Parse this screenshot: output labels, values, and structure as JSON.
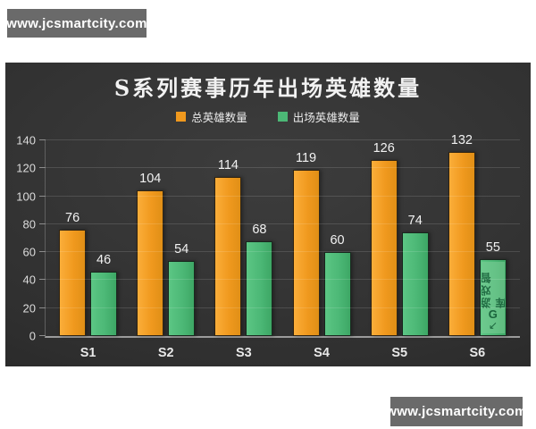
{
  "watermarks": {
    "top_left": "www.jcsmartcity.com",
    "bottom_right": "www.jcsmartcity.com",
    "on_chart": {
      "text": "游戏智库",
      "logo": "G",
      "arrow": "↙",
      "category": "S6",
      "series_index": 1
    }
  },
  "chart_data": {
    "type": "bar",
    "title": "S系列赛事历年出场英雄数量",
    "categories": [
      "S1",
      "S2",
      "S3",
      "S4",
      "S5",
      "S6"
    ],
    "series": [
      {
        "name": "总英雄数量",
        "color": "#F0991E",
        "color_light": "#FBAE3A",
        "color_dark": "#E08F16",
        "values": [
          76,
          104,
          114,
          119,
          126,
          132
        ]
      },
      {
        "name": "出场英雄数量",
        "color": "#4CB876",
        "color_light": "#5CC684",
        "color_dark": "#3DA765",
        "values": [
          46,
          54,
          68,
          60,
          74,
          55
        ]
      }
    ],
    "xlabel": "",
    "ylabel": "",
    "ylim": [
      0,
      140
    ],
    "yticks": [
      0,
      20,
      40,
      60,
      80,
      100,
      120,
      140
    ],
    "grid": "horizontal",
    "legend_position": "top",
    "colors": {
      "panel_background": "#2f2f2f",
      "title_text": "#f2f2f2",
      "axis_line": "#9b9b9b",
      "tick_label": "#dcdcdc"
    }
  }
}
